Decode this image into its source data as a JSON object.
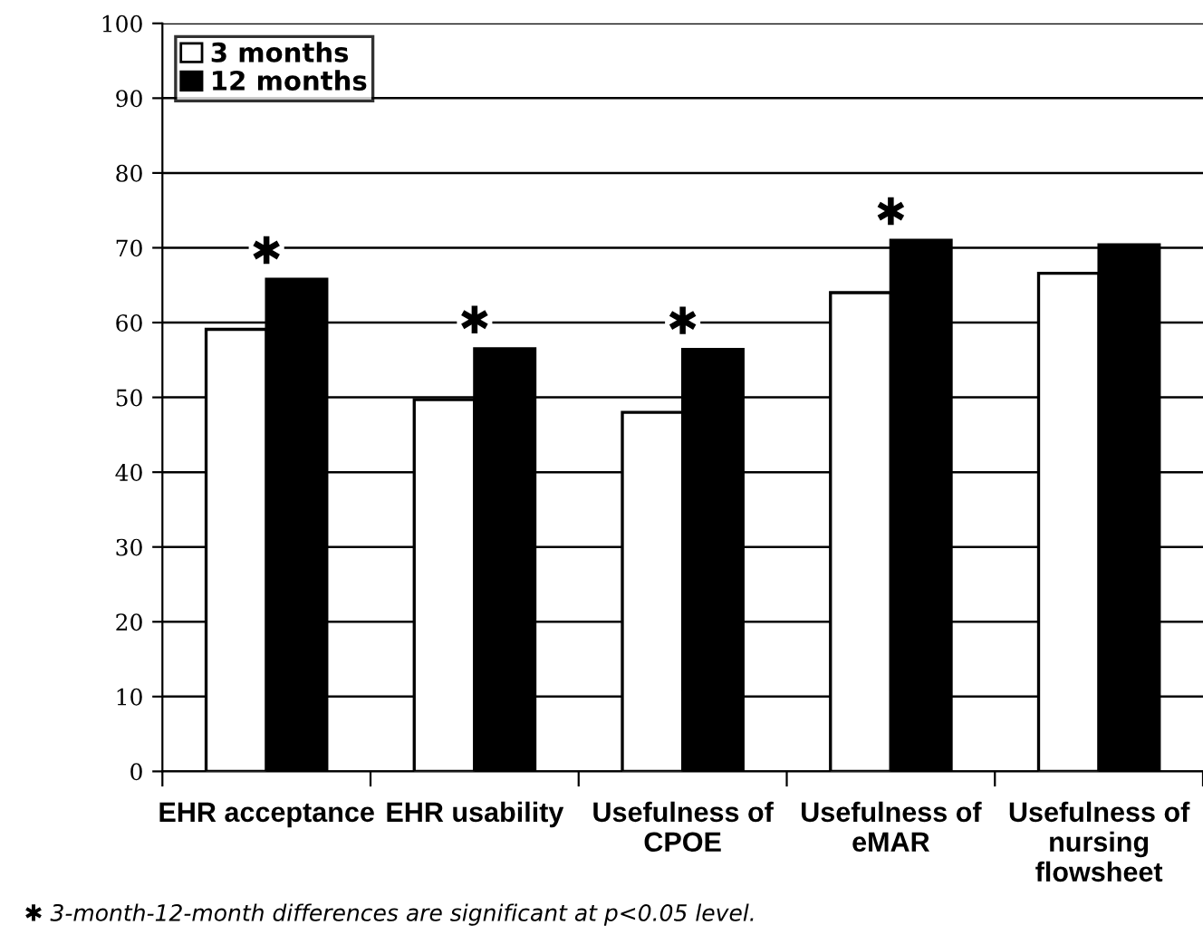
{
  "chart_data": {
    "type": "bar",
    "categories": [
      "EHR acceptance",
      "EHR usability",
      "Usefulness of\nCPOE",
      "Usefulness of\neMAR",
      "Usefulness of\nnursing\nflowsheet"
    ],
    "series": [
      {
        "name": "3 months",
        "color": "#ffffff",
        "values": [
          59.1,
          49.7,
          48.0,
          64.0,
          66.6
        ]
      },
      {
        "name": "12 months",
        "color": "#000000",
        "values": [
          65.8,
          56.5,
          56.4,
          71.0,
          70.4
        ]
      }
    ],
    "ylim": [
      0,
      100
    ],
    "yticks": [
      0,
      10,
      20,
      30,
      40,
      50,
      60,
      70,
      80,
      90,
      100
    ],
    "grid": "y",
    "legend": "top left",
    "annotations": [
      {
        "text": "✱",
        "x": "EHR acceptance",
        "y": 65.8
      },
      {
        "text": "✱",
        "x": "EHR usability",
        "y": 56.5
      },
      {
        "text": "✱",
        "x": "Usefulness of\nCPOE",
        "y": 56.4
      },
      {
        "text": "✱",
        "x": "Usefulness of\neMAR",
        "y": 71.0
      },
      "✱ 3-month-12-month differences are significant at p<0.05 level."
    ]
  }
}
